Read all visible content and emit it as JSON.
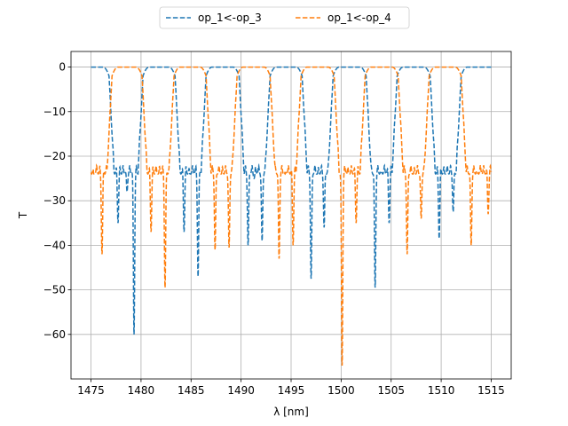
{
  "chart_data": {
    "type": "line",
    "xlabel": "λ [nm]",
    "ylabel": "T",
    "xlim": [
      1473.0,
      1517.0
    ],
    "ylim": [
      -70.0,
      3.5
    ],
    "xticks": [
      1475,
      1480,
      1485,
      1490,
      1495,
      1500,
      1505,
      1510,
      1515
    ],
    "yticks": [
      0,
      -10,
      -20,
      -30,
      -40,
      -50,
      -60
    ],
    "grid": true,
    "legend_position": "top-center",
    "series": [
      {
        "name": "op_1<-op_3",
        "color": "#1f77b4",
        "style": "dashed",
        "dips": [
          {
            "center": 1477.7,
            "depth": -35
          },
          {
            "center": 1478.1,
            "depth": -22
          },
          {
            "center": 1478.6,
            "depth": -28
          },
          {
            "center": 1479.3,
            "depth": -60
          },
          {
            "center": 1484.3,
            "depth": -37
          },
          {
            "center": 1484.9,
            "depth": -24
          },
          {
            "center": 1485.7,
            "depth": -47
          },
          {
            "center": 1490.7,
            "depth": -40
          },
          {
            "center": 1491.3,
            "depth": -25
          },
          {
            "center": 1492.1,
            "depth": -39
          },
          {
            "center": 1497.0,
            "depth": -47.5
          },
          {
            "center": 1497.6,
            "depth": -24
          },
          {
            "center": 1498.3,
            "depth": -36
          },
          {
            "center": 1503.4,
            "depth": -49.5
          },
          {
            "center": 1504.0,
            "depth": -24
          },
          {
            "center": 1504.8,
            "depth": -35
          },
          {
            "center": 1509.8,
            "depth": -38.5
          },
          {
            "center": 1510.4,
            "depth": -24
          },
          {
            "center": 1511.2,
            "depth": -32.5
          }
        ],
        "stopbands": [
          [
            1476.8,
            1480.2
          ],
          [
            1483.4,
            1486.5
          ],
          [
            1489.8,
            1492.9
          ],
          [
            1496.1,
            1499.2
          ],
          [
            1502.5,
            1505.6
          ],
          [
            1508.9,
            1512.0
          ]
        ],
        "x_range": [
          1475.0,
          1515.0
        ]
      },
      {
        "name": "op_1<-op_4",
        "color": "#ff7f0e",
        "style": "dashed",
        "dips": [
          {
            "center": 1475.3,
            "depth": -24
          },
          {
            "center": 1476.1,
            "depth": -42
          },
          {
            "center": 1481.0,
            "depth": -37
          },
          {
            "center": 1481.7,
            "depth": -24
          },
          {
            "center": 1482.4,
            "depth": -49.5
          },
          {
            "center": 1487.4,
            "depth": -41
          },
          {
            "center": 1488.0,
            "depth": -24
          },
          {
            "center": 1488.8,
            "depth": -40.5
          },
          {
            "center": 1493.8,
            "depth": -43
          },
          {
            "center": 1494.4,
            "depth": -24
          },
          {
            "center": 1495.2,
            "depth": -40
          },
          {
            "center": 1500.1,
            "depth": -67
          },
          {
            "center": 1500.8,
            "depth": -24
          },
          {
            "center": 1501.5,
            "depth": -35
          },
          {
            "center": 1506.6,
            "depth": -42
          },
          {
            "center": 1507.2,
            "depth": -24
          },
          {
            "center": 1508.0,
            "depth": -34
          },
          {
            "center": 1513.0,
            "depth": -40
          },
          {
            "center": 1513.6,
            "depth": -24
          },
          {
            "center": 1514.7,
            "depth": -33
          }
        ],
        "stopbands": [
          [
            1474.0,
            1477.1
          ],
          [
            1480.1,
            1483.3
          ],
          [
            1486.5,
            1489.6
          ],
          [
            1492.9,
            1496.0
          ],
          [
            1499.3,
            1502.4
          ],
          [
            1505.7,
            1508.8
          ],
          [
            1512.0,
            1515.5
          ]
        ],
        "x_range": [
          1475.0,
          1515.0
        ]
      }
    ]
  }
}
